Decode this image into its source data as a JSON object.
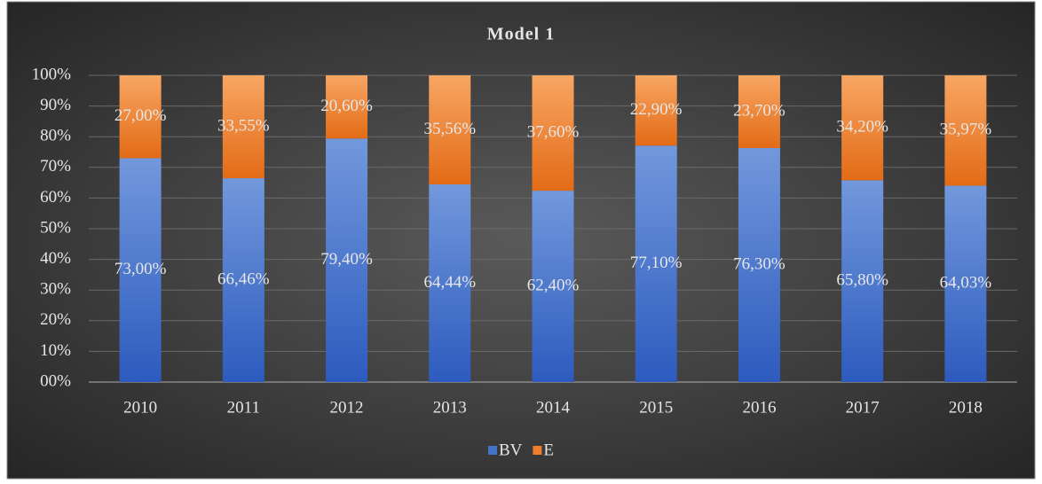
{
  "chart_data": {
    "type": "stacked_bar",
    "title": "Model 1",
    "categories": [
      "2010",
      "2011",
      "2012",
      "2013",
      "2014",
      "2015",
      "2016",
      "2017",
      "2018"
    ],
    "series": [
      {
        "name": "BV",
        "color": "#4472c4",
        "values": [
          73.0,
          66.46,
          79.4,
          64.44,
          62.4,
          77.1,
          76.3,
          65.8,
          64.03
        ],
        "value_labels": [
          "73,00%",
          "66,46%",
          "79,40%",
          "64,44%",
          "62,40%",
          "77,10%",
          "76,30%",
          "65,80%",
          "64,03%"
        ]
      },
      {
        "name": "E",
        "color": "#ed7d31",
        "values": [
          27.0,
          33.55,
          20.6,
          35.56,
          37.6,
          22.9,
          23.7,
          34.2,
          35.97
        ],
        "value_labels": [
          "27,00%",
          "33,55%",
          "20,60%",
          "35,56%",
          "37,60%",
          "22,90%",
          "23,70%",
          "34,20%",
          "35,97%"
        ]
      }
    ],
    "ylim": [
      0,
      100
    ],
    "yticks": [
      {
        "value": 0,
        "label": "00%"
      },
      {
        "value": 10,
        "label": "10%"
      },
      {
        "value": 20,
        "label": "20%"
      },
      {
        "value": 30,
        "label": "30%"
      },
      {
        "value": 40,
        "label": "40%"
      },
      {
        "value": 50,
        "label": "50%"
      },
      {
        "value": 60,
        "label": "60%"
      },
      {
        "value": 70,
        "label": "70%"
      },
      {
        "value": 80,
        "label": "80%"
      },
      {
        "value": 90,
        "label": "90%"
      },
      {
        "value": 100,
        "label": "100%"
      }
    ],
    "grid": true,
    "legend": "bottom"
  }
}
